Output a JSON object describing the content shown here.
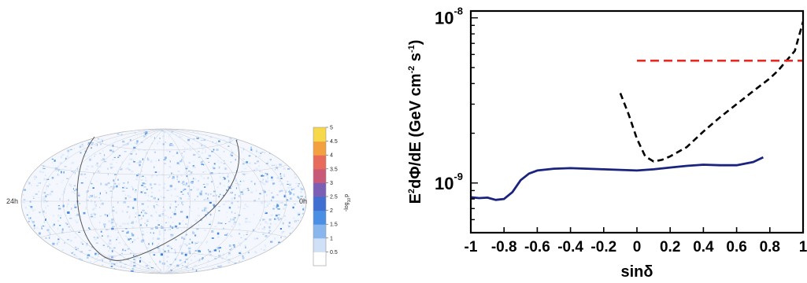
{
  "skymap": {
    "left_label": "24h",
    "right_label": "0h",
    "colorbar_label": "-log",
    "colorbar_sub": "10",
    "colorbar_var": "p",
    "colorbar_ticks": [
      "0.5",
      "1",
      "1.5",
      "2",
      "2.5",
      "3",
      "3.5",
      "4",
      "4.5",
      "5"
    ],
    "colorbar_range": [
      0,
      5
    ],
    "colorbar_colors": [
      "#ffffff",
      "#cfe0f7",
      "#8ab6ee",
      "#4a8fe4",
      "#3f6fd0",
      "#7a5fb5",
      "#c85a78",
      "#e86a5a",
      "#f2a040",
      "#f6d84a"
    ],
    "point_color": "#5b9be6",
    "boundary_color": "#555555"
  },
  "chart_data": {
    "type": "line",
    "xlabel": "sinδ",
    "ylabel": "E²dΦ/dE (GeV cm⁻² s⁻¹)",
    "ylabel_parts": {
      "main": "E",
      "sup1": "2",
      "mid": "dΦ/dE (GeV cm",
      "sup2": "-2",
      "mid2": " s",
      "sup3": "-1",
      "end": ")"
    },
    "xlim": [
      -1,
      1
    ],
    "ylim": [
      5e-10,
      1.1e-08
    ],
    "yscale": "log",
    "x_ticks": [
      -1,
      -0.8,
      -0.6,
      -0.4,
      -0.2,
      0,
      0.2,
      0.4,
      0.6,
      0.8,
      1
    ],
    "x_tick_labels": [
      "-1",
      "-0.8",
      "-0.6",
      "-0.4",
      "-0.2",
      "0",
      "0.2",
      "0.4",
      "0.6",
      "0.8",
      "1"
    ],
    "y_ticks": [
      {
        "value": 1e-09,
        "base": "10",
        "exp": "-9"
      },
      {
        "value": 1e-08,
        "base": "10",
        "exp": "-8"
      }
    ],
    "series": [
      {
        "style": "solid",
        "color": "#1a237e",
        "x": [
          -1.0,
          -0.95,
          -0.9,
          -0.85,
          -0.8,
          -0.75,
          -0.7,
          -0.65,
          -0.6,
          -0.5,
          -0.4,
          -0.3,
          -0.2,
          -0.1,
          0.0,
          0.1,
          0.2,
          0.3,
          0.4,
          0.5,
          0.6,
          0.7,
          0.76
        ],
        "y": [
          8.2e-10,
          8.1e-10,
          8.15e-10,
          7.9e-10,
          8e-10,
          8.8e-10,
          1.04e-09,
          1.14e-09,
          1.19e-09,
          1.22e-09,
          1.23e-09,
          1.22e-09,
          1.21e-09,
          1.2e-09,
          1.19e-09,
          1.21e-09,
          1.24e-09,
          1.27e-09,
          1.29e-09,
          1.28e-09,
          1.28e-09,
          1.34e-09,
          1.43e-09
        ]
      },
      {
        "style": "dashed",
        "color": "#000000",
        "x": [
          -0.1,
          -0.05,
          0.0,
          0.05,
          0.1,
          0.15,
          0.2,
          0.3,
          0.4,
          0.5,
          0.6,
          0.7,
          0.8,
          0.85,
          0.9,
          0.95,
          1.0
        ],
        "y": [
          3.5e-09,
          2.6e-09,
          1.85e-09,
          1.45e-09,
          1.35e-09,
          1.38e-09,
          1.45e-09,
          1.65e-09,
          2.05e-09,
          2.5e-09,
          3e-09,
          3.6e-09,
          4.3e-09,
          4.8e-09,
          5.5e-09,
          6.3e-09,
          9.5e-09
        ]
      },
      {
        "style": "dashed",
        "color": "#e8271e",
        "x": [
          0.0,
          1.0
        ],
        "y": [
          5.5e-09,
          5.5e-09
        ]
      }
    ]
  }
}
